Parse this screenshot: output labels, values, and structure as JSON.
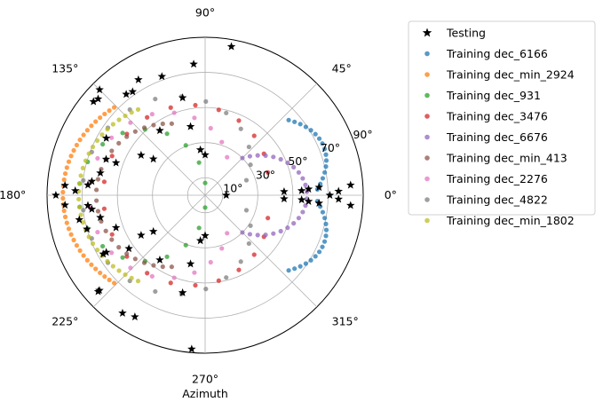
{
  "chart_data": {
    "type": "scatter",
    "projection": "polar",
    "xlabel": "Azimuth",
    "theta_tick_labels": [
      "0°",
      "45°",
      "90°",
      "135°",
      "180°",
      "225°",
      "270°",
      "315°"
    ],
    "theta_ticks_deg": [
      0,
      45,
      90,
      135,
      180,
      225,
      270,
      315
    ],
    "r_tick_labels": [
      "10°",
      "30°",
      "50°",
      "70°",
      "90°"
    ],
    "r_ticks": [
      10,
      30,
      50,
      70,
      90
    ],
    "r_label_angle_deg": 22.5,
    "rlim": [
      0,
      90
    ],
    "grid": true,
    "legend_position": "upper-right-outside",
    "series": [
      {
        "name": "Testing",
        "marker": "star",
        "color": "#000000",
        "points": [
          [
            0.0,
            71
          ],
          [
            1.7,
            76
          ],
          [
            -1.7,
            76
          ],
          [
            4.0,
            83
          ],
          [
            -4.0,
            83
          ],
          [
            4.0,
            65
          ],
          [
            -4.0,
            65
          ],
          [
            3.4,
            59
          ],
          [
            -3.4,
            59
          ],
          [
            2.7,
            55
          ],
          [
            -2.7,
            55
          ],
          [
            2.6,
            45
          ],
          [
            -2.6,
            45
          ],
          [
            0,
            12
          ],
          [
            95,
            75
          ],
          [
            80,
            86
          ],
          [
            265,
            88
          ],
          [
            110,
            72
          ],
          [
            103,
            57
          ],
          [
            -103,
            57
          ],
          [
            102,
            40
          ],
          [
            -102,
            40
          ],
          [
            96,
            26
          ],
          [
            -96,
            26
          ],
          [
            90,
            23
          ],
          [
            -90,
            23
          ],
          [
            145,
            36
          ],
          [
            -145,
            36
          ],
          [
            215,
            53
          ],
          [
            120,
            76
          ],
          [
            240,
            80
          ],
          [
            235,
            82
          ],
          [
            173,
            65
          ],
          [
            187,
            65
          ],
          [
            168,
            61
          ],
          [
            192,
            61
          ],
          [
            160,
            54
          ],
          [
            200,
            54
          ],
          [
            148,
            43
          ],
          [
            212,
            43
          ],
          [
            125,
            45
          ],
          [
            235,
            45
          ],
          [
            210,
            67
          ],
          [
            128,
            73
          ],
          [
            176,
            80
          ],
          [
            184,
            80
          ],
          [
            138,
            82
          ],
          [
            222,
            82
          ],
          [
            125,
            72
          ],
          [
            180,
            85
          ],
          [
            135,
            85
          ],
          [
            191,
            73
          ],
          [
            222,
            81
          ],
          [
            140,
            83
          ],
          [
            150,
            65
          ],
          [
            210,
            65
          ],
          [
            160,
            60
          ],
          [
            175,
            67
          ],
          [
            185,
            67
          ],
          [
            178,
            74
          ],
          [
            196,
            70
          ]
        ]
      },
      {
        "name": "Training dec_6166",
        "marker": "dot",
        "color": "#1f77b4",
        "curve": "arc",
        "r": [
          64,
          73
        ],
        "theta": [
          3,
          42
        ],
        "symmetric": true,
        "count": 16
      },
      {
        "name": "Training dec_min_2924",
        "marker": "dot",
        "color": "#ff7f0e",
        "curve": "arc",
        "r": [
          72,
          81
        ],
        "theta": [
          136,
          224
        ],
        "count": 36
      },
      {
        "name": "Training dec_931",
        "marker": "dot",
        "color": "#2ca02c",
        "curve": "arc",
        "r": [
          7,
          72
        ],
        "theta": [
          90,
          270
        ],
        "count": 18
      },
      {
        "name": "Training dec_3476",
        "marker": "dot",
        "color": "#d62728",
        "curve": "arc",
        "r": [
          38,
          58
        ],
        "theta": [
          20,
          340
        ],
        "count": 22
      },
      {
        "name": "Training dec_6676",
        "marker": "dot",
        "color": "#9467bd",
        "curve": "arc",
        "r": [
          30,
          58
        ],
        "theta": [
          -45,
          45
        ],
        "count": 24
      },
      {
        "name": "Training dec_min_413",
        "marker": "dot",
        "color": "#8c564b",
        "curve": "arc",
        "r": [
          45,
          62
        ],
        "theta": [
          115,
          245
        ],
        "count": 24
      },
      {
        "name": "Training dec_2276",
        "marker": "dot",
        "color": "#e377c2",
        "curve": "arc",
        "r": [
          25,
          66
        ],
        "theta": [
          60,
          300
        ],
        "count": 20
      },
      {
        "name": "Training dec_4822",
        "marker": "dot",
        "color": "#7f7f7f",
        "curve": "arc",
        "r": [
          25,
          70
        ],
        "theta": [
          20,
          340
        ],
        "count": 24
      },
      {
        "name": "Training dec_min_1802",
        "marker": "dot",
        "color": "#bcbd22",
        "curve": "arc",
        "r": [
          62,
          72
        ],
        "theta": [
          128,
          232
        ],
        "count": 30
      }
    ]
  }
}
